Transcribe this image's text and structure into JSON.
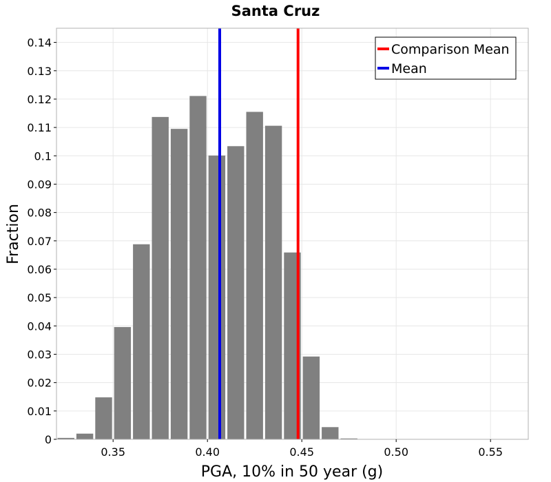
{
  "chart_data": {
    "type": "bar",
    "title": "Santa Cruz",
    "xlabel": "PGA, 10% in 50 year (g)",
    "ylabel": "Fraction",
    "xlim": [
      0.32,
      0.57
    ],
    "ylim": [
      0,
      0.145
    ],
    "bin_width": 0.01,
    "x_ticks": [
      0.35,
      0.4,
      0.45,
      0.5,
      0.55
    ],
    "x_tick_labels": [
      "0.35",
      "0.40",
      "0.45",
      "0.50",
      "0.55"
    ],
    "y_ticks": [
      0,
      0.01,
      0.02,
      0.03,
      0.04,
      0.05,
      0.06,
      0.07,
      0.08,
      0.09,
      0.1,
      0.11,
      0.12,
      0.13,
      0.14
    ],
    "y_tick_labels": [
      "0",
      "0.01",
      "0.02",
      "0.03",
      "0.04",
      "0.05",
      "0.06",
      "0.07",
      "0.08",
      "0.09",
      "0.1",
      "0.11",
      "0.12",
      "0.13",
      "0.14"
    ],
    "bins": [
      {
        "center": 0.325,
        "value": 0.0005
      },
      {
        "center": 0.335,
        "value": 0.002
      },
      {
        "center": 0.345,
        "value": 0.0148
      },
      {
        "center": 0.355,
        "value": 0.0396
      },
      {
        "center": 0.365,
        "value": 0.0688
      },
      {
        "center": 0.375,
        "value": 0.1137
      },
      {
        "center": 0.385,
        "value": 0.1095
      },
      {
        "center": 0.395,
        "value": 0.1211
      },
      {
        "center": 0.405,
        "value": 0.1001
      },
      {
        "center": 0.415,
        "value": 0.1034
      },
      {
        "center": 0.425,
        "value": 0.1155
      },
      {
        "center": 0.435,
        "value": 0.1106
      },
      {
        "center": 0.445,
        "value": 0.0659
      },
      {
        "center": 0.455,
        "value": 0.0292
      },
      {
        "center": 0.465,
        "value": 0.0043
      },
      {
        "center": 0.475,
        "value": 0.0003
      }
    ],
    "bar_color": "#808080",
    "vlines": [
      {
        "name": "Comparison Mean",
        "x": 0.448,
        "color": "#ff0000"
      },
      {
        "name": "Mean",
        "x": 0.4065,
        "color": "#0000e6"
      }
    ],
    "legend": {
      "position": "top-right",
      "entries": [
        {
          "label": "Comparison Mean",
          "color": "#ff0000"
        },
        {
          "label": "Mean",
          "color": "#0000e6"
        }
      ]
    },
    "grid": true
  }
}
